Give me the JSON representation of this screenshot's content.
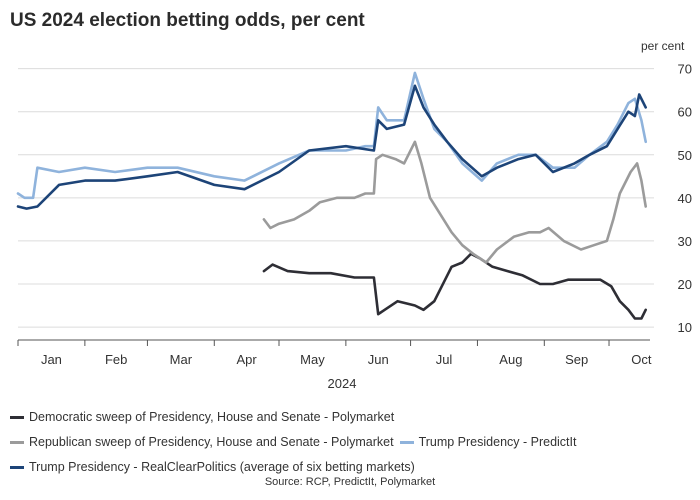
{
  "title": "US 2024 election betting odds, per cent",
  "source": "Source: RCP, PredictIt, Polymarket",
  "chart_data": {
    "type": "line",
    "title": "US 2024 election betting odds, per cent",
    "ylabel": "per cent",
    "xlabel": "2024",
    "x_axis": "date (day of year 2024)",
    "xlim": [
      "2024-01-01",
      "2024-10-20"
    ],
    "ylim": [
      7,
      72
    ],
    "yticks": [
      10,
      20,
      30,
      40,
      50,
      60,
      70
    ],
    "month_labels": [
      "Jan",
      "Feb",
      "Mar",
      "Apr",
      "May",
      "Jun",
      "Jul",
      "Aug",
      "Sep",
      "Oct"
    ],
    "year_label": "2024",
    "grid": "horizontal",
    "legend_position": "bottom",
    "series": [
      {
        "name": "Democratic sweep of Presidency, House and Senate - Polymarket",
        "color": "#2e2e35",
        "x": [
          "2024-04-24",
          "2024-04-28",
          "2024-05-05",
          "2024-05-15",
          "2024-05-25",
          "2024-06-05",
          "2024-06-14",
          "2024-06-16",
          "2024-06-19",
          "2024-06-25",
          "2024-07-03",
          "2024-07-07",
          "2024-07-12",
          "2024-07-20",
          "2024-07-25",
          "2024-07-29",
          "2024-08-02",
          "2024-08-08",
          "2024-08-15",
          "2024-08-22",
          "2024-08-30",
          "2024-09-05",
          "2024-09-12",
          "2024-09-20",
          "2024-09-27",
          "2024-10-02",
          "2024-10-06",
          "2024-10-10",
          "2024-10-13",
          "2024-10-16",
          "2024-10-18"
        ],
        "y": [
          23,
          24.5,
          23,
          22.5,
          22.5,
          21.5,
          21.5,
          13,
          14,
          16,
          15,
          14,
          16,
          24,
          25,
          27,
          26,
          24,
          23,
          22,
          20,
          20,
          21,
          21,
          21,
          19.5,
          16,
          14,
          12,
          12,
          14
        ]
      },
      {
        "name": "Republican sweep of Presidency, House and Senate - Polymarket",
        "color": "#9b9b9b",
        "x": [
          "2024-04-24",
          "2024-04-27",
          "2024-05-01",
          "2024-05-08",
          "2024-05-15",
          "2024-05-20",
          "2024-05-28",
          "2024-06-05",
          "2024-06-10",
          "2024-06-14",
          "2024-06-15",
          "2024-06-18",
          "2024-06-24",
          "2024-06-28",
          "2024-07-03",
          "2024-07-06",
          "2024-07-10",
          "2024-07-15",
          "2024-07-20",
          "2024-07-25",
          "2024-07-30",
          "2024-08-05",
          "2024-08-10",
          "2024-08-18",
          "2024-08-25",
          "2024-08-30",
          "2024-09-03",
          "2024-09-10",
          "2024-09-18",
          "2024-09-24",
          "2024-09-30",
          "2024-10-03",
          "2024-10-06",
          "2024-10-11",
          "2024-10-14",
          "2024-10-16",
          "2024-10-18"
        ],
        "y": [
          35,
          33,
          34,
          35,
          37,
          39,
          40,
          40,
          41,
          41,
          49,
          50,
          49,
          48,
          53,
          48,
          40,
          36,
          32,
          29,
          27,
          25,
          28,
          31,
          32,
          32,
          33,
          30,
          28,
          29,
          30,
          35,
          41,
          46,
          48,
          44,
          38
        ]
      },
      {
        "name": "Trump Presidency - PredictIt",
        "color": "#8fb3dc",
        "x": [
          "2024-01-01",
          "2024-01-04",
          "2024-01-08",
          "2024-01-10",
          "2024-01-20",
          "2024-02-01",
          "2024-02-15",
          "2024-03-01",
          "2024-03-15",
          "2024-04-01",
          "2024-04-15",
          "2024-05-01",
          "2024-05-15",
          "2024-06-01",
          "2024-06-10",
          "2024-06-14",
          "2024-06-16",
          "2024-06-20",
          "2024-06-28",
          "2024-07-03",
          "2024-07-07",
          "2024-07-12",
          "2024-07-18",
          "2024-07-25",
          "2024-08-03",
          "2024-08-10",
          "2024-08-20",
          "2024-08-28",
          "2024-09-05",
          "2024-09-15",
          "2024-09-22",
          "2024-09-30",
          "2024-10-05",
          "2024-10-10",
          "2024-10-13",
          "2024-10-16",
          "2024-10-18"
        ],
        "y": [
          41,
          40,
          40,
          47,
          46,
          47,
          46,
          47,
          47,
          45,
          44,
          48,
          51,
          51,
          52,
          52,
          61,
          58,
          58,
          69,
          63,
          56,
          53,
          48,
          44,
          48,
          50,
          50,
          47,
          47,
          50,
          53,
          57,
          62,
          63,
          58,
          53
        ]
      },
      {
        "name": "Trump Presidency - RealClearPolitics (average of six betting markets)",
        "color": "#1d4478",
        "x": [
          "2024-01-01",
          "2024-01-05",
          "2024-01-10",
          "2024-01-20",
          "2024-02-01",
          "2024-02-15",
          "2024-03-01",
          "2024-03-15",
          "2024-04-01",
          "2024-04-15",
          "2024-05-01",
          "2024-05-15",
          "2024-06-01",
          "2024-06-14",
          "2024-06-16",
          "2024-06-20",
          "2024-06-28",
          "2024-07-03",
          "2024-07-07",
          "2024-07-12",
          "2024-07-18",
          "2024-07-25",
          "2024-08-03",
          "2024-08-10",
          "2024-08-20",
          "2024-08-28",
          "2024-09-05",
          "2024-09-15",
          "2024-09-22",
          "2024-09-30",
          "2024-10-05",
          "2024-10-10",
          "2024-10-13",
          "2024-10-15",
          "2024-10-18"
        ],
        "y": [
          38,
          37.5,
          38,
          43,
          44,
          44,
          45,
          46,
          43,
          42,
          46,
          51,
          52,
          51,
          58,
          56,
          57,
          66,
          61,
          57,
          53,
          49,
          45,
          47,
          49,
          50,
          46,
          48,
          50,
          52,
          56,
          60,
          59,
          64,
          61
        ]
      }
    ]
  }
}
